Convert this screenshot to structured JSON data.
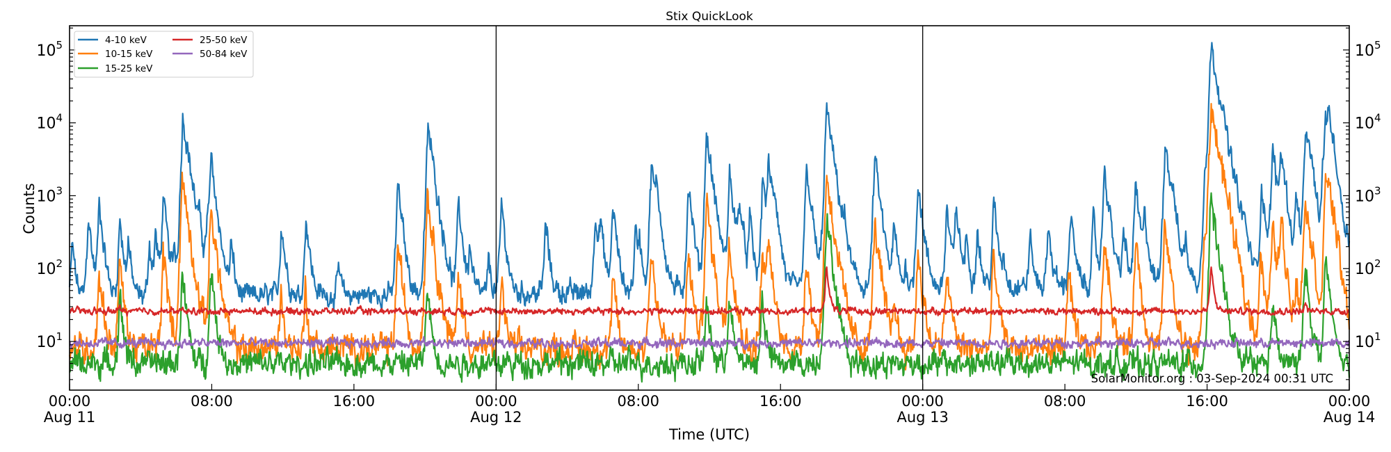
{
  "chart_data": {
    "type": "line",
    "title": "Stix QuickLook",
    "xlabel": "Time (UTC)",
    "ylabel": "Counts",
    "yscale": "log",
    "ylim": [
      2.15,
      215000
    ],
    "xlim": [
      "Aug 11 00:00",
      "Aug 14 00:00"
    ],
    "grid": false,
    "legend_position": "top-left",
    "y_ticks": [
      {
        "base": "10",
        "exp": "1",
        "value": 10
      },
      {
        "base": "10",
        "exp": "2",
        "value": 100
      },
      {
        "base": "10",
        "exp": "3",
        "value": 1000
      },
      {
        "base": "10",
        "exp": "4",
        "value": 10000
      },
      {
        "base": "10",
        "exp": "5",
        "value": 100000
      }
    ],
    "x_ticks": [
      {
        "time": "00:00",
        "date": "Aug 11",
        "at": "Aug 11 00:00"
      },
      {
        "time": "08:00",
        "date": "",
        "at": "Aug 11 08:00"
      },
      {
        "time": "16:00",
        "date": "",
        "at": "Aug 11 16:00"
      },
      {
        "time": "00:00",
        "date": "Aug 12",
        "at": "Aug 12 00:00"
      },
      {
        "time": "08:00",
        "date": "",
        "at": "Aug 12 08:00"
      },
      {
        "time": "16:00",
        "date": "",
        "at": "Aug 12 16:00"
      },
      {
        "time": "00:00",
        "date": "Aug 13",
        "at": "Aug 13 00:00"
      },
      {
        "time": "08:00",
        "date": "",
        "at": "Aug 13 08:00"
      },
      {
        "time": "16:00",
        "date": "",
        "at": "Aug 13 16:00"
      },
      {
        "time": "00:00",
        "date": "Aug 14",
        "at": "Aug 14 00:00"
      }
    ],
    "day_separators": [
      "Aug 12 00:00",
      "Aug 13 00:00"
    ],
    "series": [
      {
        "name": "4-10 keV",
        "color": "#1f77b4",
        "baseline": [
          [
            "Aug 11 00:00",
            40
          ],
          [
            "Aug 12 00:00",
            45
          ],
          [
            "Aug 13 00:00",
            55
          ],
          [
            "Aug 14 00:00",
            65
          ]
        ],
        "peaks": [
          [
            "Aug 11 00:09",
            235
          ],
          [
            "Aug 11 01:03",
            550
          ],
          [
            "Aug 11 01:40",
            815
          ],
          [
            "Aug 11 02:49",
            500
          ],
          [
            "Aug 11 03:18",
            235
          ],
          [
            "Aug 11 04:29",
            245
          ],
          [
            "Aug 11 04:50",
            310
          ],
          [
            "Aug 11 05:16",
            960
          ],
          [
            "Aug 11 05:53",
            210
          ],
          [
            "Aug 11 06:22",
            13000
          ],
          [
            "Aug 11 07:16",
            290
          ],
          [
            "Aug 11 07:44",
            365
          ],
          [
            "Aug 11 07:57",
            3200
          ],
          [
            "Aug 11 09:05",
            230
          ],
          [
            "Aug 11 11:55",
            450
          ],
          [
            "Aug 11 13:18",
            530
          ],
          [
            "Aug 11 15:08",
            114
          ],
          [
            "Aug 11 18:28",
            1480
          ],
          [
            "Aug 11 20:10",
            9000
          ],
          [
            "Aug 11 21:53",
            815
          ],
          [
            "Aug 11 22:31",
            200
          ],
          [
            "Aug 11 23:35",
            140
          ],
          [
            "Aug 12 00:18",
            790
          ],
          [
            "Aug 12 02:47",
            450
          ],
          [
            "Aug 12 05:35",
            630
          ],
          [
            "Aug 12 05:52",
            410
          ],
          [
            "Aug 12 06:34",
            770
          ],
          [
            "Aug 12 07:50",
            365
          ],
          [
            "Aug 12 08:04",
            257
          ],
          [
            "Aug 12 08:44",
            2750
          ],
          [
            "Aug 12 09:02",
            980
          ],
          [
            "Aug 12 10:49",
            1480
          ],
          [
            "Aug 12 11:50",
            7100
          ],
          [
            "Aug 12 13:08",
            2100
          ],
          [
            "Aug 12 13:41",
            850
          ],
          [
            "Aug 12 14:16",
            500
          ],
          [
            "Aug 12 15:00",
            1850
          ],
          [
            "Aug 12 15:20",
            2570
          ],
          [
            "Aug 12 15:41",
            770
          ],
          [
            "Aug 12 17:28",
            2450
          ],
          [
            "Aug 12 18:35",
            16000
          ],
          [
            "Aug 12 19:35",
            257
          ],
          [
            "Aug 12 21:18",
            3400
          ],
          [
            "Aug 12 22:23",
            400
          ],
          [
            "Aug 12 23:02",
            120
          ],
          [
            "Aug 12 23:44",
            1660
          ],
          [
            "Aug 13 01:21",
            710
          ],
          [
            "Aug 13 01:53",
            740
          ],
          [
            "Aug 13 02:27",
            280
          ],
          [
            "Aug 13 03:04",
            380
          ],
          [
            "Aug 13 04:00",
            820
          ],
          [
            "Aug 13 04:32",
            158
          ],
          [
            "Aug 13 06:02",
            300
          ],
          [
            "Aug 13 07:04",
            415
          ],
          [
            "Aug 13 08:19",
            620
          ],
          [
            "Aug 13 09:36",
            475
          ],
          [
            "Aug 13 10:13",
            2500
          ],
          [
            "Aug 13 11:18",
            365
          ],
          [
            "Aug 13 11:58",
            1480
          ],
          [
            "Aug 13 12:29",
            540
          ],
          [
            "Aug 13 13:38",
            5900
          ],
          [
            "Aug 13 14:02",
            690
          ],
          [
            "Aug 13 14:47",
            275
          ],
          [
            "Aug 13 15:52",
            2570
          ],
          [
            "Aug 13 16:13",
            120000
          ],
          [
            "Aug 13 16:34",
            2100
          ],
          [
            "Aug 13 17:41",
            197
          ],
          [
            "Aug 13 18:04",
            300
          ],
          [
            "Aug 13 19:04",
            1480
          ],
          [
            "Aug 13 19:41",
            4400
          ],
          [
            "Aug 13 20:09",
            4300
          ],
          [
            "Aug 13 21:01",
            1050
          ],
          [
            "Aug 13 21:31",
            5900
          ],
          [
            "Aug 13 21:43",
            4200
          ],
          [
            "Aug 13 22:31",
            2000
          ],
          [
            "Aug 13 22:40",
            11500
          ],
          [
            "Aug 13 22:50",
            10600
          ],
          [
            "Aug 13 23:05",
            690
          ],
          [
            "Aug 13 23:53",
            197
          ]
        ]
      },
      {
        "name": "10-15 keV",
        "color": "#ff7f0e",
        "baseline": [
          [
            "Aug 11 00:00",
            8
          ],
          [
            "Aug 14 00:00",
            8
          ]
        ],
        "peaks": [
          [
            "Aug 11 01:40",
            100
          ],
          [
            "Aug 11 02:49",
            127
          ],
          [
            "Aug 11 05:16",
            170
          ],
          [
            "Aug 11 06:20",
            1700
          ],
          [
            "Aug 11 07:57",
            690
          ],
          [
            "Aug 11 11:53",
            50
          ],
          [
            "Aug 11 13:16",
            50
          ],
          [
            "Aug 11 18:28",
            230
          ],
          [
            "Aug 11 20:07",
            1100
          ],
          [
            "Aug 11 21:53",
            95
          ],
          [
            "Aug 12 00:18",
            69
          ],
          [
            "Aug 12 06:34",
            70
          ],
          [
            "Aug 12 08:42",
            205
          ],
          [
            "Aug 12 10:48",
            170
          ],
          [
            "Aug 12 11:50",
            780
          ],
          [
            "Aug 12 13:06",
            300
          ],
          [
            "Aug 12 14:58",
            180
          ],
          [
            "Aug 12 15:18",
            220
          ],
          [
            "Aug 12 17:26",
            160
          ],
          [
            "Aug 12 18:35",
            2000
          ],
          [
            "Aug 12 21:18",
            440
          ],
          [
            "Aug 12 22:23",
            45
          ],
          [
            "Aug 12 23:44",
            185
          ],
          [
            "Aug 13 01:21",
            107
          ],
          [
            "Aug 13 03:59",
            150
          ],
          [
            "Aug 13 08:12",
            88
          ],
          [
            "Aug 13 10:13",
            275
          ],
          [
            "Aug 13 11:58",
            257
          ],
          [
            "Aug 13 13:38",
            400
          ],
          [
            "Aug 13 15:52",
            290
          ],
          [
            "Aug 13 16:13",
            17000
          ],
          [
            "Aug 13 16:34",
            185
          ],
          [
            "Aug 13 19:00",
            170
          ],
          [
            "Aug 13 19:41",
            425
          ],
          [
            "Aug 13 20:09",
            425
          ],
          [
            "Aug 13 21:00",
            86
          ],
          [
            "Aug 13 21:31",
            1070
          ],
          [
            "Aug 13 22:40",
            1520
          ],
          [
            "Aug 13 22:50",
            1100
          ]
        ]
      },
      {
        "name": "15-25 keV",
        "color": "#2ca02c",
        "baseline": [
          [
            "Aug 11 00:00",
            5
          ],
          [
            "Aug 14 00:00",
            5
          ]
        ],
        "peaks": [
          [
            "Aug 11 02:49",
            45
          ],
          [
            "Aug 11 06:20",
            88
          ],
          [
            "Aug 11 07:57",
            98
          ],
          [
            "Aug 11 20:07",
            57
          ],
          [
            "Aug 12 11:50",
            40
          ],
          [
            "Aug 12 13:06",
            43
          ],
          [
            "Aug 12 14:58",
            43
          ],
          [
            "Aug 12 18:35",
            530
          ],
          [
            "Aug 13 16:13",
            980
          ],
          [
            "Aug 13 19:40",
            37
          ],
          [
            "Aug 13 21:31",
            120
          ],
          [
            "Aug 13 22:40",
            140
          ]
        ]
      },
      {
        "name": "25-50 keV",
        "color": "#d62728",
        "baseline": [
          [
            "Aug 11 00:00",
            26
          ],
          [
            "Aug 14 00:00",
            26
          ]
        ],
        "peaks": [
          [
            "Aug 11 02:49",
            30
          ],
          [
            "Aug 12 18:35",
            119
          ],
          [
            "Aug 13 16:13",
            114
          ],
          [
            "Aug 13 21:31",
            34
          ]
        ]
      },
      {
        "name": "50-84 keV",
        "color": "#9467bd",
        "baseline": [
          [
            "Aug 11 00:00",
            9.5
          ],
          [
            "Aug 14 00:00",
            9.5
          ]
        ],
        "peaks": []
      }
    ],
    "annotation": "SolarMonitor.org : 03-Sep-2024 00:31 UTC"
  }
}
